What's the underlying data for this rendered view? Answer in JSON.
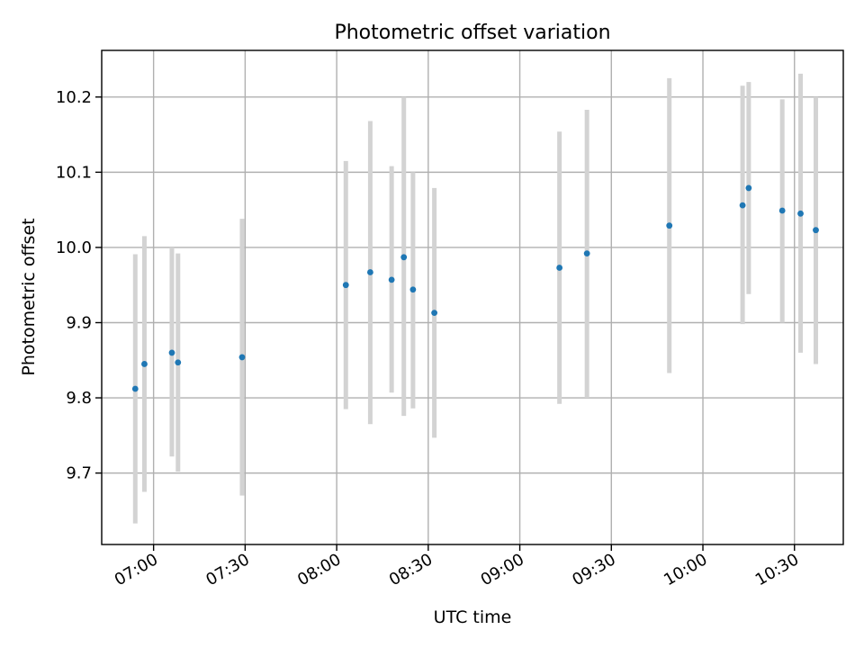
{
  "chart_data": {
    "type": "scatter",
    "title": "Photometric offset variation",
    "xlabel": "UTC time",
    "ylabel": "Photometric offset",
    "x_tick_labels": [
      "07:00",
      "07:30",
      "08:00",
      "08:30",
      "09:00",
      "09:30",
      "10:00",
      "10:30"
    ],
    "y_ticks": [
      9.7,
      9.8,
      9.9,
      10.0,
      10.1,
      10.2
    ],
    "y_tick_labels": [
      "9.7",
      "9.8",
      "9.9",
      "10.0",
      "10.1",
      "10.2"
    ],
    "xlim": [
      "06:43",
      "10:46"
    ],
    "ylim": [
      9.605,
      10.262
    ],
    "grid": true,
    "colors": {
      "points": "#1f77b4",
      "error_bars": "#d3d3d3",
      "grid": "#b0b0b0"
    },
    "points": [
      {
        "x": "06:54",
        "y": 9.812,
        "err_low": 9.633,
        "err_high": 9.991
      },
      {
        "x": "06:57",
        "y": 9.845,
        "err_low": 9.675,
        "err_high": 10.015
      },
      {
        "x": "07:06",
        "y": 9.86,
        "err_low": 9.722,
        "err_high": 10.0
      },
      {
        "x": "07:08",
        "y": 9.847,
        "err_low": 9.702,
        "err_high": 9.992
      },
      {
        "x": "07:29",
        "y": 9.854,
        "err_low": 9.67,
        "err_high": 10.038
      },
      {
        "x": "08:03",
        "y": 9.95,
        "err_low": 9.785,
        "err_high": 10.115
      },
      {
        "x": "08:11",
        "y": 9.967,
        "err_low": 9.765,
        "err_high": 10.168
      },
      {
        "x": "08:18",
        "y": 9.957,
        "err_low": 9.807,
        "err_high": 10.108
      },
      {
        "x": "08:22",
        "y": 9.987,
        "err_low": 9.776,
        "err_high": 10.2
      },
      {
        "x": "08:25",
        "y": 9.944,
        "err_low": 9.786,
        "err_high": 10.1
      },
      {
        "x": "08:32",
        "y": 9.913,
        "err_low": 9.747,
        "err_high": 10.079
      },
      {
        "x": "09:13",
        "y": 9.973,
        "err_low": 9.792,
        "err_high": 10.154
      },
      {
        "x": "09:22",
        "y": 9.992,
        "err_low": 9.8,
        "err_high": 10.183
      },
      {
        "x": "09:49",
        "y": 10.029,
        "err_low": 9.833,
        "err_high": 10.225
      },
      {
        "x": "10:13",
        "y": 10.056,
        "err_low": 9.898,
        "err_high": 10.215
      },
      {
        "x": "10:15",
        "y": 10.079,
        "err_low": 9.938,
        "err_high": 10.22
      },
      {
        "x": "10:26",
        "y": 10.049,
        "err_low": 9.9,
        "err_high": 10.197
      },
      {
        "x": "10:32",
        "y": 10.045,
        "err_low": 9.86,
        "err_high": 10.231
      },
      {
        "x": "10:37",
        "y": 10.023,
        "err_low": 9.845,
        "err_high": 10.2
      }
    ]
  }
}
